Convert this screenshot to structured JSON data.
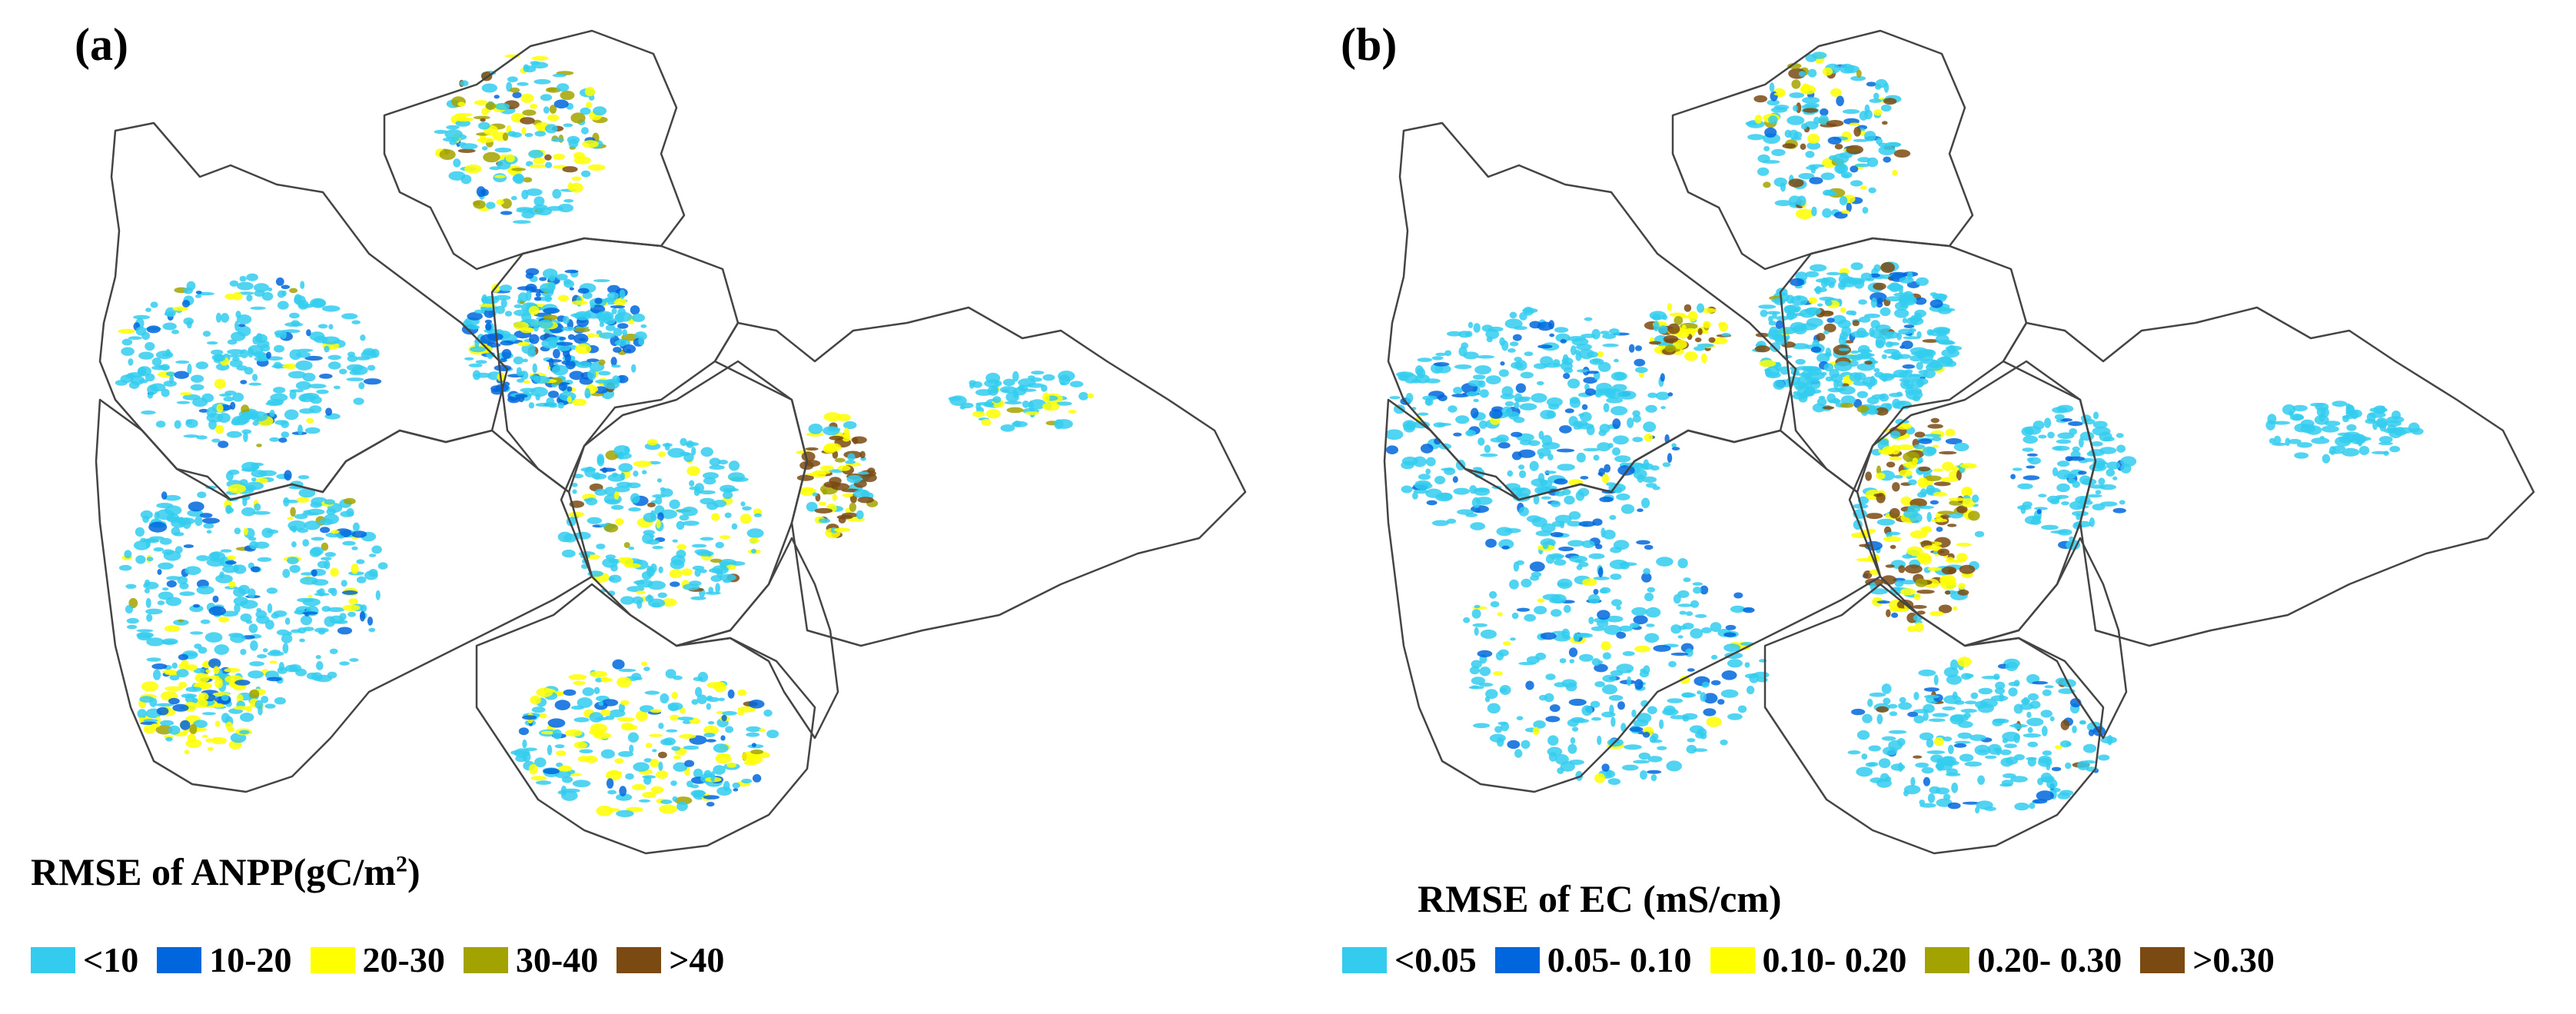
{
  "panels": [
    {
      "label": "(a)",
      "legend_title_main": "RMSE of ANPP(gC/m",
      "legend_title_sup": "2",
      "legend_title_end": ")",
      "legend": [
        {
          "label": "<10",
          "color": "#33ccee"
        },
        {
          "label": "10-20",
          "color": "#0066dd"
        },
        {
          "label": "20-30",
          "color": "#ffff00"
        },
        {
          "label": "30-40",
          "color": "#a3a300"
        },
        {
          "label": ">40",
          "color": "#7a4a12"
        }
      ]
    },
    {
      "label": "(b)",
      "legend_title_main": "RMSE of EC (mS/cm)",
      "legend": [
        {
          "label": "<0.05",
          "color": "#33ccee"
        },
        {
          "label": "0.05- 0.10",
          "color": "#0066dd"
        },
        {
          "label": "0.10- 0.20",
          "color": "#ffff00"
        },
        {
          "label": "0.20- 0.30",
          "color": "#a3a300"
        },
        {
          "label": ">0.30",
          "color": "#7a4a12"
        }
      ]
    }
  ],
  "palette": {
    "c1": "#33ccee",
    "c2": "#0066dd",
    "c3": "#ffff00",
    "c4": "#a3a300",
    "c5": "#7a4a12",
    "boundary": "#444444"
  }
}
